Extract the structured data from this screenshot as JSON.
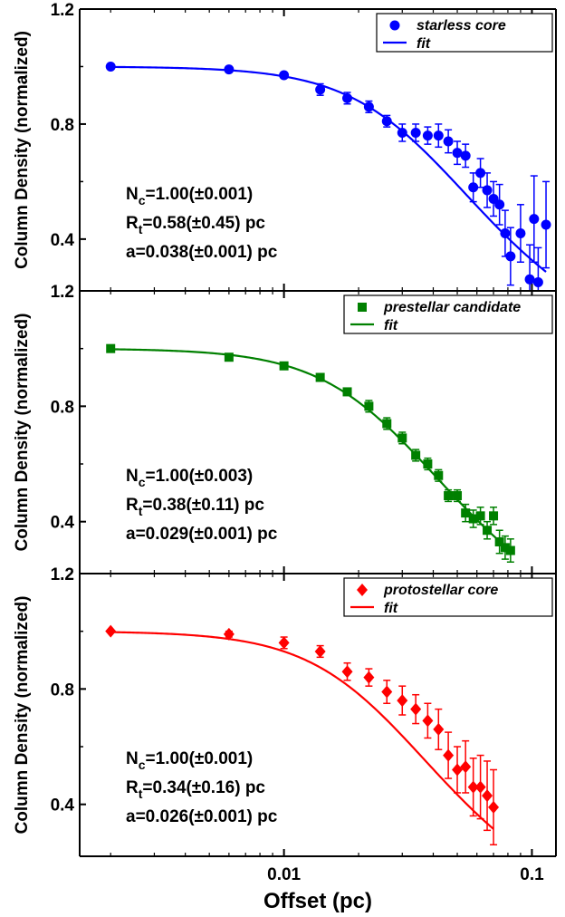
{
  "x_axis": {
    "label": "Offset (pc)",
    "ticks": [
      {
        "value": 0.01,
        "label": "0.01"
      },
      {
        "value": 0.1,
        "label": "0.1"
      }
    ]
  },
  "y_axis_label": "Column Density (normalized)",
  "y_ticks": [
    {
      "value": 1.2,
      "label": "1.2"
    },
    {
      "value": 0.8,
      "label": "0.8"
    },
    {
      "value": 0.4,
      "label": "0.4"
    }
  ],
  "chart_data": [
    {
      "type": "scatter",
      "color": "#0000ff",
      "marker": "circle",
      "xscale": "log",
      "xlim": [
        0.0015,
        0.125
      ],
      "ylim": [
        0.22,
        1.2
      ],
      "ylabel": "Column Density (normalized)",
      "xlabel": "Offset (pc)",
      "legend": {
        "position": "top-right",
        "entries": [
          "starless core",
          "fit"
        ]
      },
      "annotations": [
        "N",
        "c",
        "=1.00(±0.001)",
        "R",
        "t",
        "=0.58(±0.45) pc",
        "a=0.038(±0.001) pc"
      ],
      "series": [
        {
          "name": "starless core",
          "points": [
            {
              "x": 0.002,
              "y": 1.0,
              "err": 0.0
            },
            {
              "x": 0.006,
              "y": 0.99,
              "err": 0.01
            },
            {
              "x": 0.01,
              "y": 0.97,
              "err": 0.01
            },
            {
              "x": 0.014,
              "y": 0.92,
              "err": 0.02
            },
            {
              "x": 0.018,
              "y": 0.89,
              "err": 0.02
            },
            {
              "x": 0.022,
              "y": 0.86,
              "err": 0.02
            },
            {
              "x": 0.026,
              "y": 0.81,
              "err": 0.02
            },
            {
              "x": 0.03,
              "y": 0.77,
              "err": 0.03
            },
            {
              "x": 0.034,
              "y": 0.77,
              "err": 0.03
            },
            {
              "x": 0.038,
              "y": 0.76,
              "err": 0.03
            },
            {
              "x": 0.042,
              "y": 0.76,
              "err": 0.04
            },
            {
              "x": 0.046,
              "y": 0.74,
              "err": 0.04
            },
            {
              "x": 0.05,
              "y": 0.7,
              "err": 0.04
            },
            {
              "x": 0.054,
              "y": 0.69,
              "err": 0.04
            },
            {
              "x": 0.058,
              "y": 0.58,
              "err": 0.05
            },
            {
              "x": 0.062,
              "y": 0.63,
              "err": 0.05
            },
            {
              "x": 0.066,
              "y": 0.57,
              "err": 0.06
            },
            {
              "x": 0.07,
              "y": 0.54,
              "err": 0.06
            },
            {
              "x": 0.074,
              "y": 0.52,
              "err": 0.07
            },
            {
              "x": 0.078,
              "y": 0.42,
              "err": 0.08
            },
            {
              "x": 0.082,
              "y": 0.34,
              "err": 0.1
            },
            {
              "x": 0.09,
              "y": 0.42,
              "err": 0.1
            },
            {
              "x": 0.098,
              "y": 0.26,
              "err": 0.12
            },
            {
              "x": 0.102,
              "y": 0.47,
              "err": 0.15
            },
            {
              "x": 0.106,
              "y": 0.25,
              "err": 0.12
            },
            {
              "x": 0.114,
              "y": 0.45,
              "err": 0.15
            }
          ]
        },
        {
          "name": "fit",
          "model": {
            "nc": 1.0,
            "a": 0.038,
            "rt": 0.58,
            "x_end": 0.114
          }
        }
      ]
    },
    {
      "type": "scatter",
      "color": "#008000",
      "marker": "square",
      "xscale": "log",
      "xlim": [
        0.0015,
        0.125
      ],
      "ylim": [
        0.22,
        1.2
      ],
      "ylabel": "Column Density (normalized)",
      "xlabel": "Offset (pc)",
      "legend": {
        "position": "top-right",
        "entries": [
          "prestellar candidate",
          "fit"
        ]
      },
      "annotations": [
        "N",
        "c",
        "=1.00(±0.003)",
        "R",
        "t",
        "=0.38(±0.11) pc",
        "a=0.029(±0.001) pc"
      ],
      "series": [
        {
          "name": "prestellar candidate",
          "points": [
            {
              "x": 0.002,
              "y": 1.0,
              "err": 0.0
            },
            {
              "x": 0.006,
              "y": 0.97,
              "err": 0.01
            },
            {
              "x": 0.01,
              "y": 0.94,
              "err": 0.01
            },
            {
              "x": 0.014,
              "y": 0.9,
              "err": 0.01
            },
            {
              "x": 0.018,
              "y": 0.85,
              "err": 0.01
            },
            {
              "x": 0.022,
              "y": 0.8,
              "err": 0.02
            },
            {
              "x": 0.026,
              "y": 0.74,
              "err": 0.02
            },
            {
              "x": 0.03,
              "y": 0.69,
              "err": 0.02
            },
            {
              "x": 0.034,
              "y": 0.63,
              "err": 0.02
            },
            {
              "x": 0.038,
              "y": 0.6,
              "err": 0.02
            },
            {
              "x": 0.042,
              "y": 0.56,
              "err": 0.02
            },
            {
              "x": 0.046,
              "y": 0.49,
              "err": 0.02
            },
            {
              "x": 0.05,
              "y": 0.49,
              "err": 0.02
            },
            {
              "x": 0.054,
              "y": 0.43,
              "err": 0.03
            },
            {
              "x": 0.058,
              "y": 0.41,
              "err": 0.03
            },
            {
              "x": 0.062,
              "y": 0.42,
              "err": 0.03
            },
            {
              "x": 0.066,
              "y": 0.37,
              "err": 0.03
            },
            {
              "x": 0.07,
              "y": 0.42,
              "err": 0.03
            },
            {
              "x": 0.074,
              "y": 0.33,
              "err": 0.04
            },
            {
              "x": 0.078,
              "y": 0.31,
              "err": 0.04
            },
            {
              "x": 0.082,
              "y": 0.3,
              "err": 0.04
            }
          ]
        },
        {
          "name": "fit",
          "model": {
            "nc": 1.0,
            "a": 0.029,
            "rt": 0.38,
            "x_end": 0.072
          }
        }
      ]
    },
    {
      "type": "scatter",
      "color": "#ff0000",
      "marker": "diamond",
      "xscale": "log",
      "xlim": [
        0.0015,
        0.125
      ],
      "ylim": [
        0.22,
        1.2
      ],
      "ylabel": "Column Density (normalized)",
      "xlabel": "Offset (pc)",
      "legend": {
        "position": "top-right",
        "entries": [
          "protostellar core",
          "fit"
        ]
      },
      "annotations": [
        "N",
        "c",
        "=1.00(±0.001)",
        "R",
        "t",
        "=0.34(±0.16) pc",
        "a=0.026(±0.001) pc"
      ],
      "series": [
        {
          "name": "protostellar core",
          "points": [
            {
              "x": 0.002,
              "y": 1.0,
              "err": 0.0
            },
            {
              "x": 0.006,
              "y": 0.99,
              "err": 0.01
            },
            {
              "x": 0.01,
              "y": 0.96,
              "err": 0.02
            },
            {
              "x": 0.014,
              "y": 0.93,
              "err": 0.02
            },
            {
              "x": 0.018,
              "y": 0.86,
              "err": 0.03
            },
            {
              "x": 0.022,
              "y": 0.84,
              "err": 0.03
            },
            {
              "x": 0.026,
              "y": 0.79,
              "err": 0.04
            },
            {
              "x": 0.03,
              "y": 0.76,
              "err": 0.05
            },
            {
              "x": 0.034,
              "y": 0.73,
              "err": 0.05
            },
            {
              "x": 0.038,
              "y": 0.69,
              "err": 0.06
            },
            {
              "x": 0.042,
              "y": 0.66,
              "err": 0.07
            },
            {
              "x": 0.046,
              "y": 0.57,
              "err": 0.08
            },
            {
              "x": 0.05,
              "y": 0.52,
              "err": 0.08
            },
            {
              "x": 0.054,
              "y": 0.53,
              "err": 0.09
            },
            {
              "x": 0.058,
              "y": 0.46,
              "err": 0.1
            },
            {
              "x": 0.062,
              "y": 0.46,
              "err": 0.11
            },
            {
              "x": 0.066,
              "y": 0.43,
              "err": 0.12
            },
            {
              "x": 0.07,
              "y": 0.39,
              "err": 0.13
            }
          ]
        },
        {
          "name": "fit",
          "model": {
            "nc": 1.0,
            "a": 0.026,
            "rt": 0.34,
            "x_end": 0.07
          }
        }
      ]
    }
  ]
}
